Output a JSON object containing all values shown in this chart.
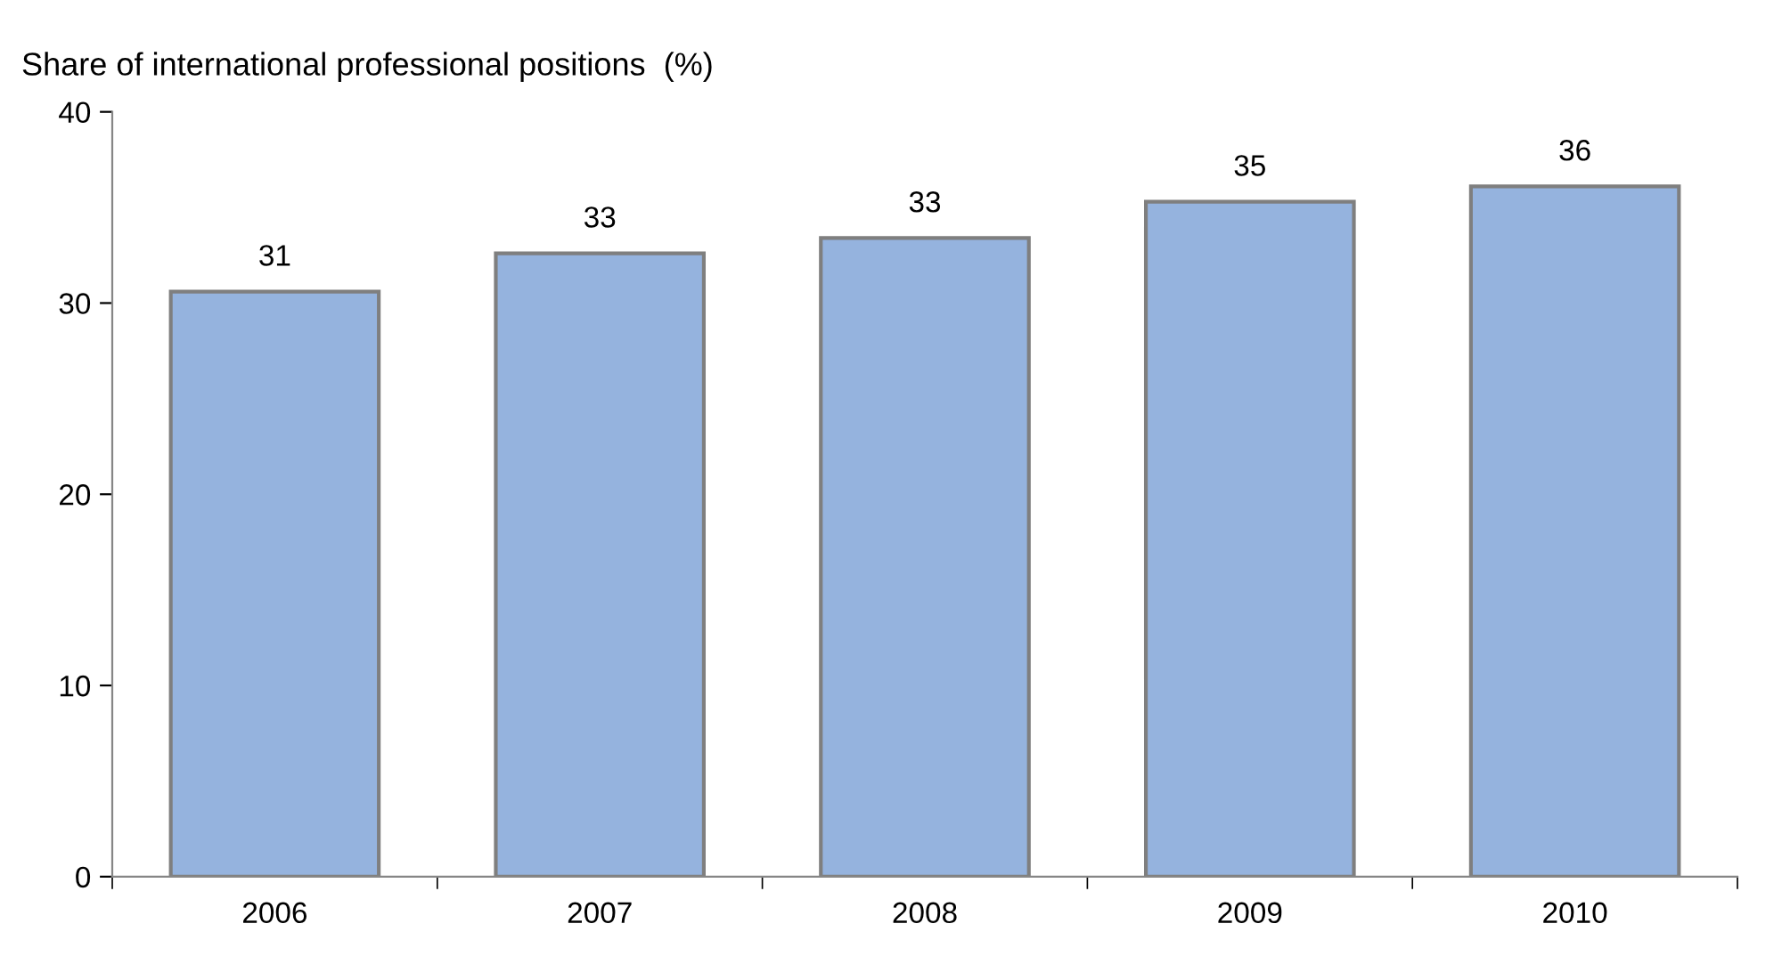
{
  "chart_data": {
    "type": "bar",
    "title": "Share of international professional positions  (%)",
    "categories": [
      "2006",
      "2007",
      "2008",
      "2009",
      "2010"
    ],
    "values": [
      30.6,
      32.6,
      33.4,
      35.3,
      36.1
    ],
    "value_labels": [
      "31",
      "33",
      "33",
      "35",
      "36"
    ],
    "color": "#95b3de",
    "ylim": [
      0,
      40
    ],
    "yticks": [
      0,
      10,
      20,
      30,
      40
    ],
    "grid": false
  }
}
